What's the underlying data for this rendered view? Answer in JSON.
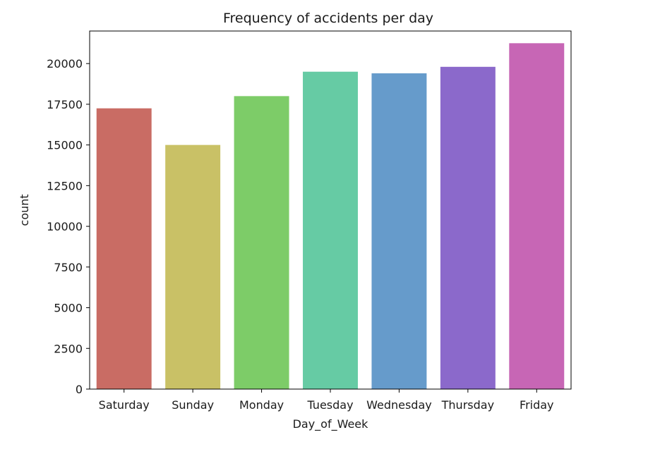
{
  "chart_data": {
    "type": "bar",
    "title": "Frequency of accidents per day",
    "xlabel": "Day_of_Week",
    "ylabel": "count",
    "categories": [
      "Saturday",
      "Sunday",
      "Monday",
      "Tuesday",
      "Wednesday",
      "Thursday",
      "Friday"
    ],
    "values": [
      17250,
      15000,
      18000,
      19500,
      19400,
      19800,
      21250
    ],
    "colors": [
      "#c96c64",
      "#c9c166",
      "#7dcc68",
      "#66cba4",
      "#669bcb",
      "#8b69cb",
      "#c766b5"
    ],
    "ylim": [
      0,
      22000
    ],
    "yticks": [
      0,
      2500,
      5000,
      7500,
      10000,
      12500,
      15000,
      17500,
      20000
    ],
    "grid": false,
    "legend": "none"
  }
}
